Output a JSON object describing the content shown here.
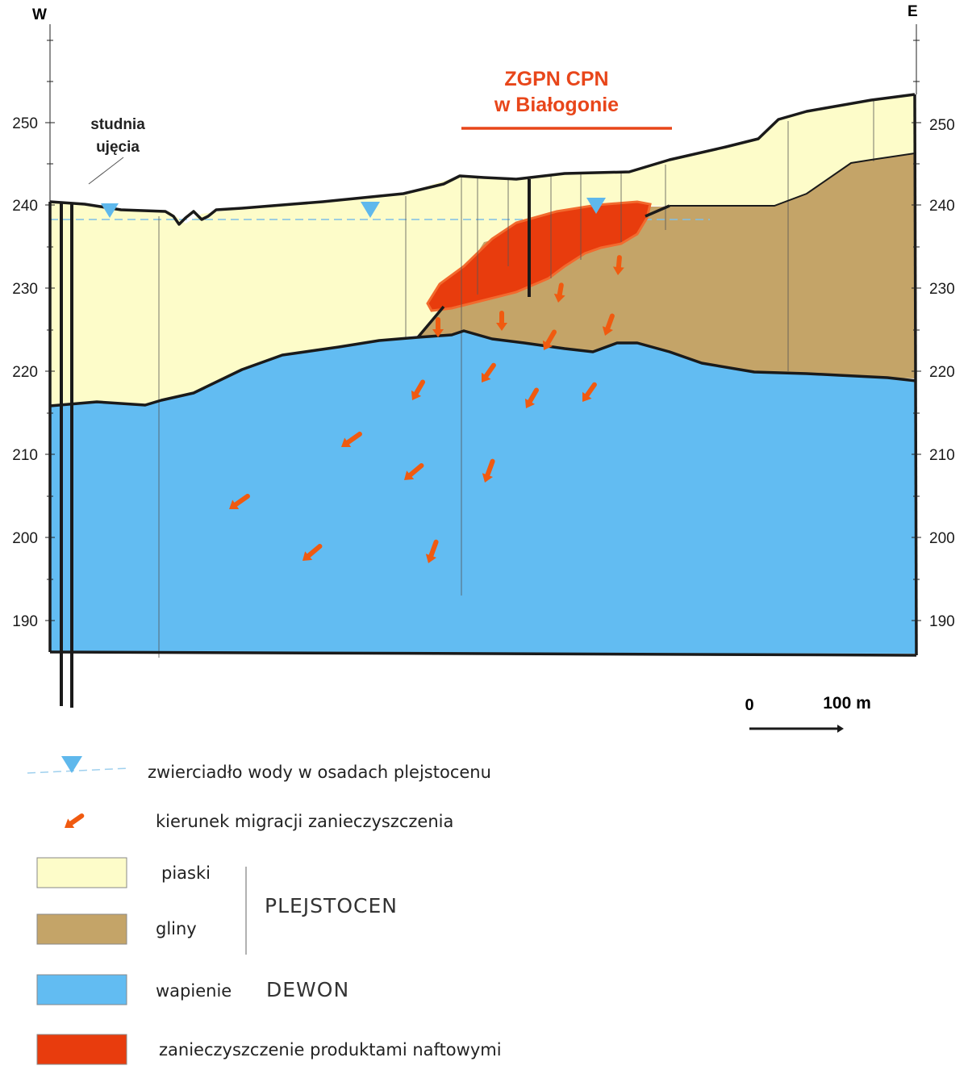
{
  "orientation": {
    "west": "W",
    "east": "E"
  },
  "elevation_ticks": [
    "250",
    "240",
    "230",
    "220",
    "210",
    "200",
    "190"
  ],
  "well_label": {
    "line1": "studnia",
    "line2": "ujęcia"
  },
  "site_label": {
    "line1": "ZGPN CPN",
    "line2": "w Białogonie"
  },
  "scale_bar": {
    "start": "0",
    "end": "100 m"
  },
  "colors": {
    "sand": "#fdfcc9",
    "clay": "#c4a468",
    "limestone": "#62bcf2",
    "contamination": "#e83c0d",
    "arrow": "#f05a10",
    "water_marker": "#5fb8ec",
    "site_text": "#e8461a"
  },
  "legend": {
    "water_table": "zwierciadło wody w osadach plejstocenu",
    "migration": "kierunek migracji zanieczyszczenia",
    "sand": "piaski",
    "clay": "gliny",
    "limestone": "wapienie",
    "contamination": "zanieczyszczenie produktami naftowymi",
    "pleistocene": "PLEJSTOCEN",
    "devonian": "DEWON"
  }
}
